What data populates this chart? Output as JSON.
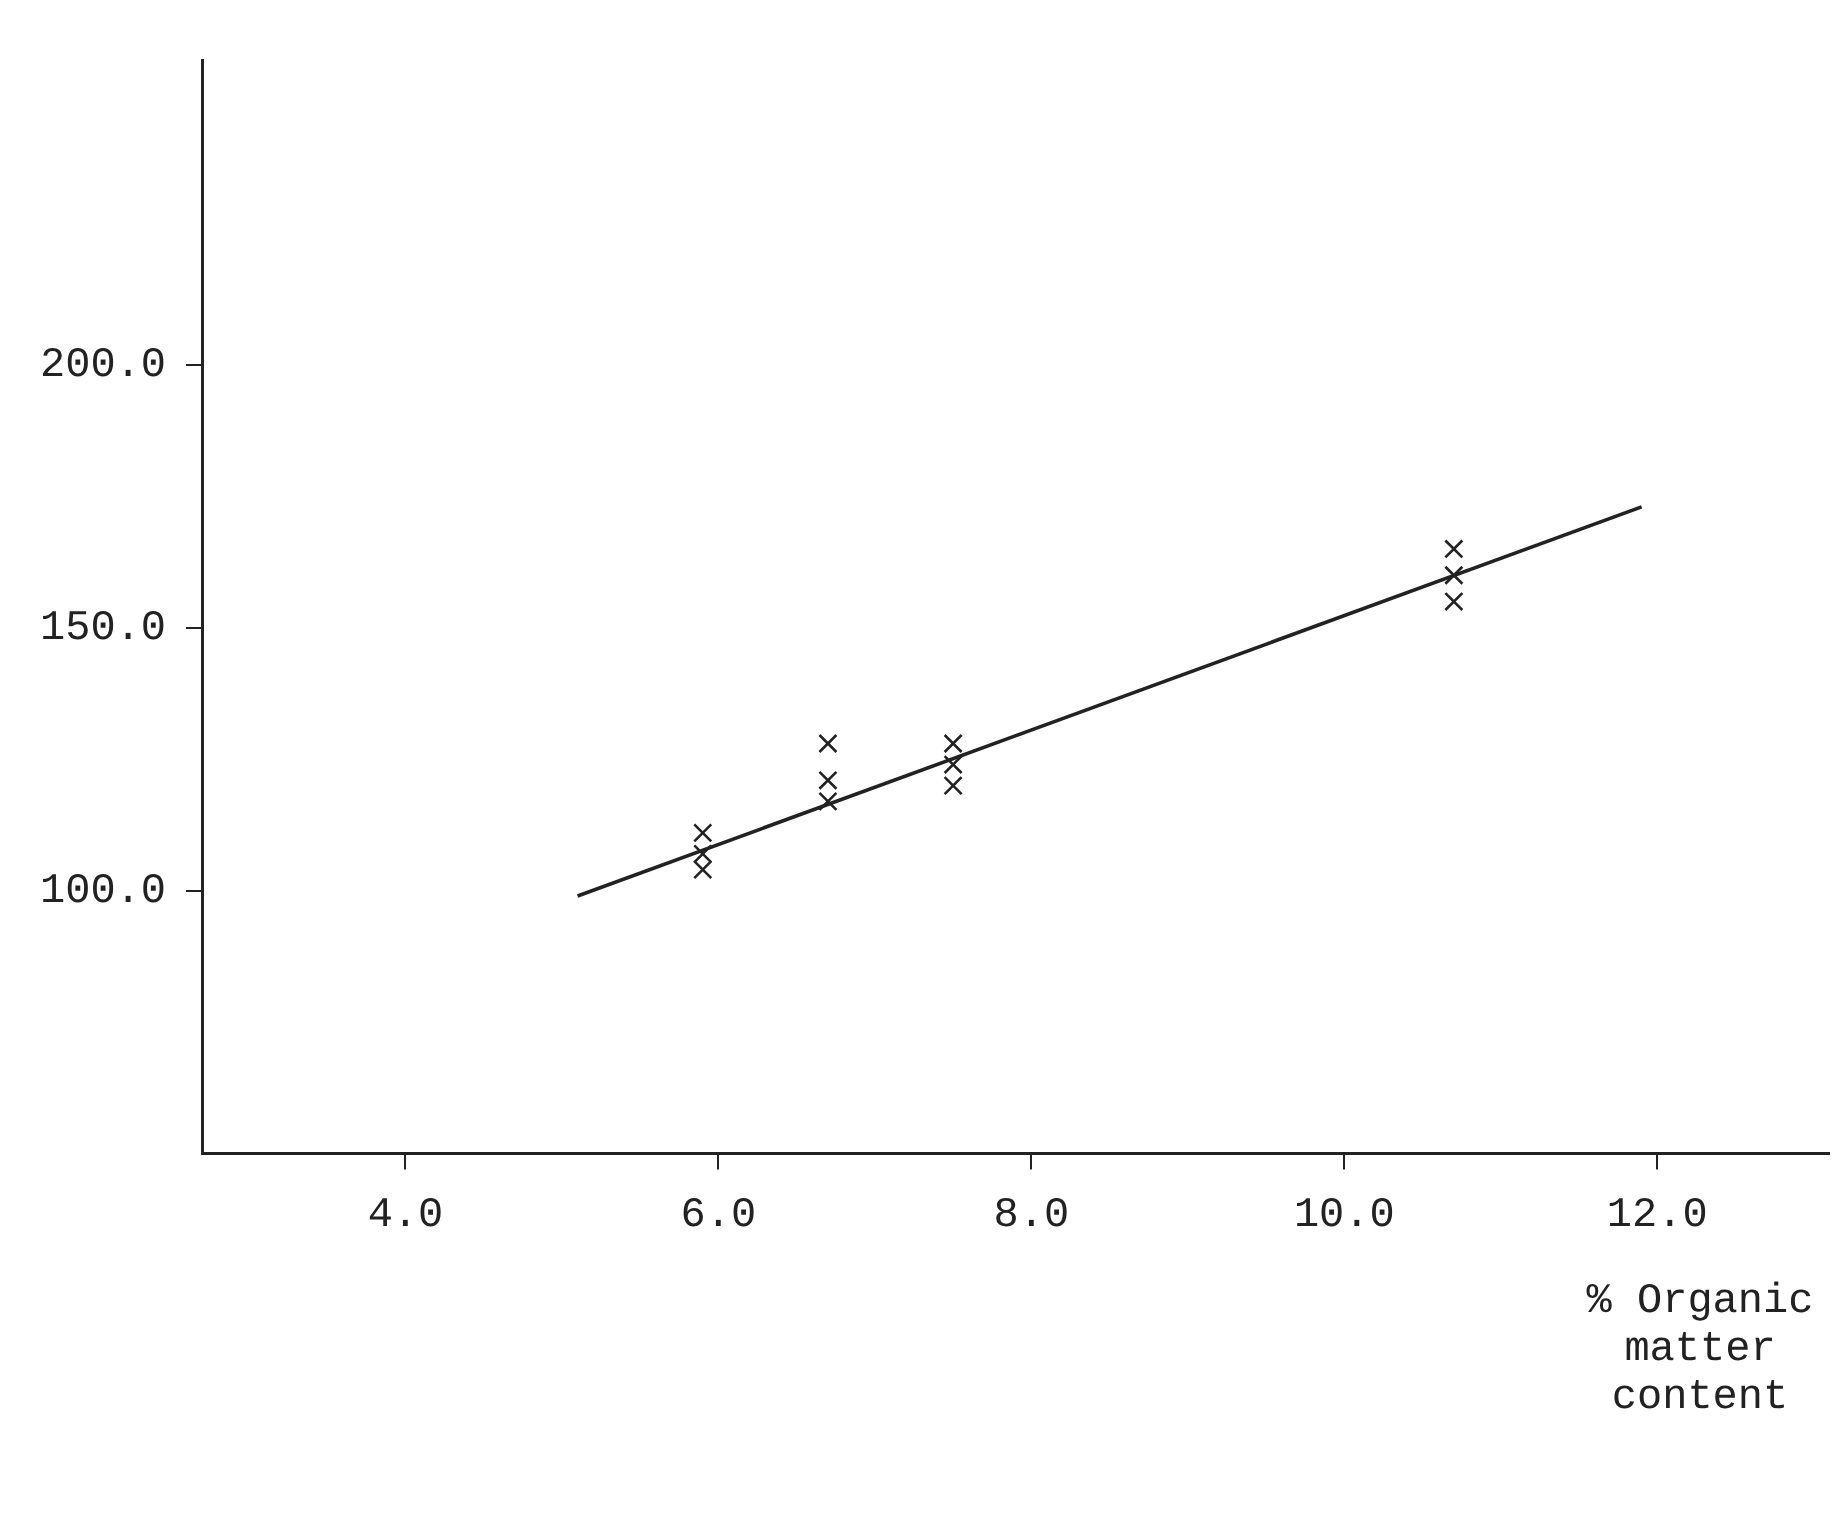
{
  "chart_data": {
    "type": "scatter",
    "xlabel": "% Organic matter content",
    "xlim": [
      2.7,
      13.1
    ],
    "ylim": [
      50,
      258
    ],
    "xticks": [
      {
        "value": 4,
        "label": "4.0"
      },
      {
        "value": 6,
        "label": "6.0"
      },
      {
        "value": 8,
        "label": "8.0"
      },
      {
        "value": 10,
        "label": "10.0"
      },
      {
        "value": 12,
        "label": "12.0"
      }
    ],
    "yticks": [
      {
        "value": 100,
        "label": "100.0"
      },
      {
        "value": 150,
        "label": "150.0"
      },
      {
        "value": 200,
        "label": "200.0"
      }
    ],
    "series": [
      {
        "type": "scatter",
        "marker": "cross",
        "color": "#222222",
        "x": [
          5.9,
          5.9,
          5.9,
          6.7,
          6.7,
          6.7,
          7.5,
          7.5,
          7.5,
          10.7,
          10.7,
          10.7
        ],
        "values": [
          111,
          107,
          104,
          128,
          121,
          117,
          128,
          124,
          120,
          165,
          160,
          155
        ]
      },
      {
        "type": "line",
        "marker": "none",
        "color": "#222222",
        "x": [
          5.1,
          11.9
        ],
        "values": [
          99,
          173
        ]
      }
    ],
    "line_style": "solid",
    "grid": false,
    "legend": false
  }
}
